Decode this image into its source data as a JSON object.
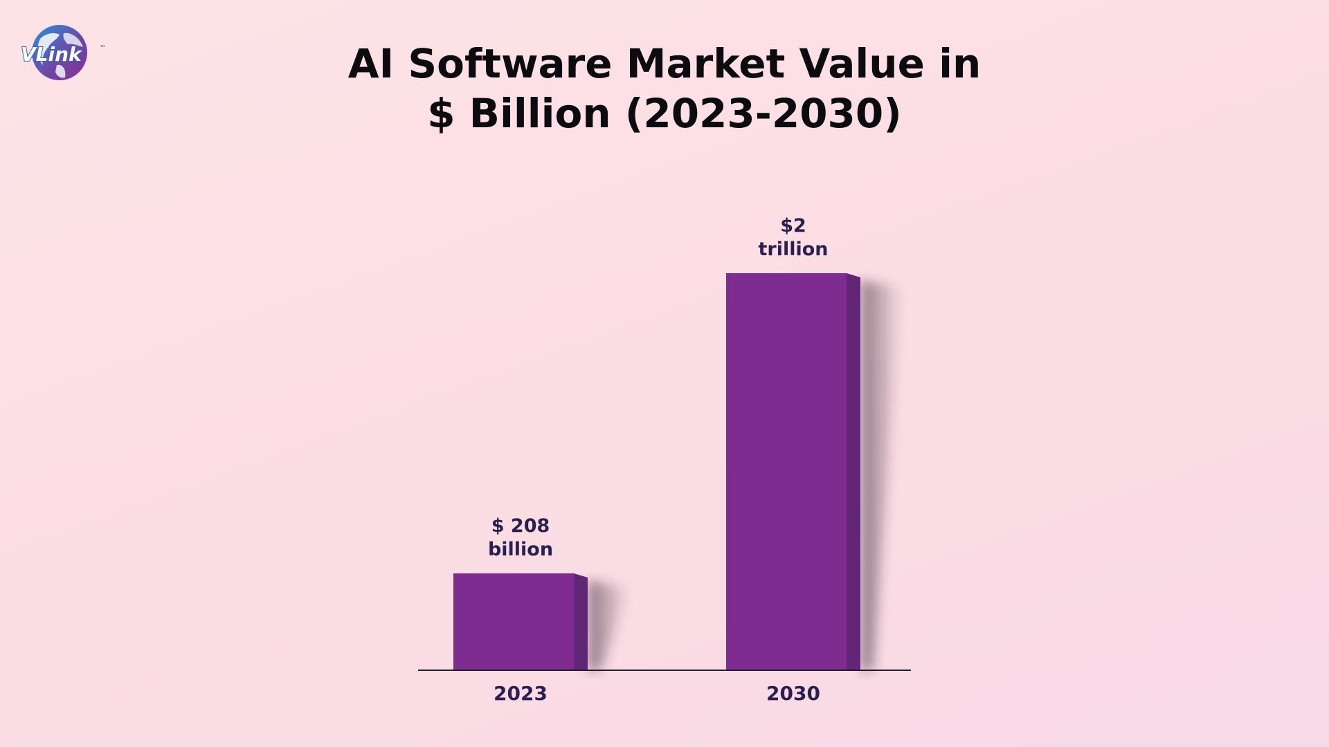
{
  "logo": {
    "text": "VLink",
    "trademark": "™"
  },
  "chart_data": {
    "type": "bar",
    "title_lines": [
      "AI Software Market Value in",
      "$ Billion (2023-2030)"
    ],
    "categories": [
      "2023",
      "2030"
    ],
    "values": [
      208,
      2000
    ],
    "unit": "$ billion",
    "data_labels": [
      [
        "$ 208",
        "billion"
      ],
      [
        "$2",
        "trillion"
      ]
    ],
    "xlabel": "",
    "ylabel": "",
    "grid": false,
    "legend": "none",
    "colors": {
      "bar_front": "#7f2c91",
      "bar_side": "#5f2775",
      "axis": "#1f1f2b",
      "label": "#2a1f4e",
      "title": "#0c0c10"
    }
  }
}
